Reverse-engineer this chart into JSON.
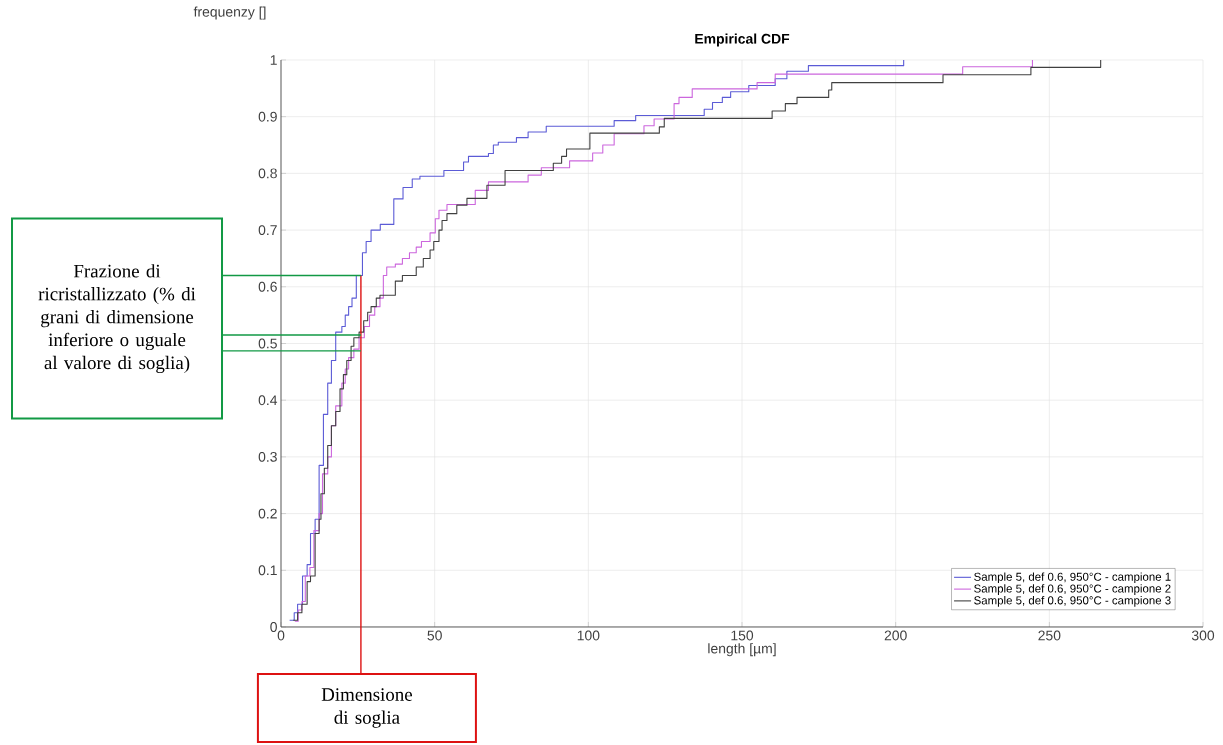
{
  "chart_data": {
    "type": "step",
    "title": "Empirical CDF",
    "xlabel": "length [µm]",
    "ylabel": "frequenzy []",
    "xlim": [
      0,
      300
    ],
    "ylim": [
      0,
      1
    ],
    "xticks": [
      0,
      50,
      100,
      150,
      200,
      250,
      300
    ],
    "yticks": [
      0,
      0.1,
      0.2,
      0.3,
      0.4,
      0.5,
      0.6,
      0.7,
      0.8,
      0.9,
      1
    ],
    "grid": true,
    "legend": "bottom right",
    "series": [
      {
        "name": "Sample 5, def 0.6, 950°C - campione 1",
        "color": "#5b5bd6",
        "x": [
          2.8,
          4.3,
          5.4,
          7.0,
          8.5,
          9.6,
          11.1,
          12.4,
          13.8,
          15.2,
          16.4,
          17.8,
          19.8,
          20.9,
          22.0,
          23.1,
          24.5,
          26.5,
          27.7,
          29.3,
          32.3,
          36.7,
          39.7,
          42.7,
          45.2,
          53,
          59.4,
          61,
          67.5,
          69.1,
          70.7,
          76.6,
          80.4,
          86.3,
          108.4,
          115.4,
          137.7,
          140.4,
          143.6,
          146.3,
          152.2,
          160.8,
          164.6,
          171.6,
          202.6
        ],
        "values": [
          0.012,
          0.025,
          0.04,
          0.09,
          0.11,
          0.165,
          0.19,
          0.285,
          0.375,
          0.43,
          0.47,
          0.52,
          0.53,
          0.55,
          0.565,
          0.58,
          0.62,
          0.66,
          0.68,
          0.7,
          0.71,
          0.755,
          0.775,
          0.79,
          0.795,
          0.805,
          0.82,
          0.83,
          0.835,
          0.85,
          0.855,
          0.863,
          0.873,
          0.883,
          0.893,
          0.902,
          0.913,
          0.925,
          0.934,
          0.944,
          0.955,
          0.967,
          0.98,
          0.99,
          1.0
        ]
      },
      {
        "name": "Sample 5, def 0.6, 950°C - campione 2",
        "color": "#cc66dd",
        "x": [
          4.5,
          5.6,
          6.8,
          7.9,
          9.4,
          10.7,
          12.4,
          13.5,
          15.2,
          16.4,
          17.8,
          19.8,
          20.9,
          22.0,
          23.7,
          25.4,
          27.1,
          28.8,
          30.5,
          32.2,
          33.3,
          34.4,
          37.2,
          39.5,
          41.8,
          44,
          45.7,
          48.5,
          50.2,
          51.4,
          54,
          63.2,
          67.5,
          80.4,
          84.7,
          93.9,
          101.4,
          104.7,
          108.4,
          118.1,
          121.4,
          127.9,
          129.5,
          133.8,
          154.9,
          160.8,
          221.8,
          244.5
        ],
        "values": [
          0.01,
          0.03,
          0.045,
          0.09,
          0.105,
          0.17,
          0.2,
          0.27,
          0.3,
          0.355,
          0.39,
          0.43,
          0.455,
          0.475,
          0.49,
          0.51,
          0.53,
          0.55,
          0.565,
          0.58,
          0.62,
          0.635,
          0.64,
          0.65,
          0.66,
          0.67,
          0.68,
          0.695,
          0.72,
          0.735,
          0.745,
          0.77,
          0.785,
          0.797,
          0.81,
          0.822,
          0.836,
          0.85,
          0.87,
          0.884,
          0.896,
          0.923,
          0.934,
          0.949,
          0.96,
          0.975,
          0.988,
          1.0
        ]
      },
      {
        "name": "Sample 5, def 0.6, 950°C - campione 3",
        "color": "#404040",
        "x": [
          4.0,
          5.4,
          6.8,
          8.5,
          9.6,
          11.1,
          12.4,
          13.0,
          14.1,
          15.2,
          16.4,
          17.8,
          19.2,
          20.3,
          21.4,
          22.8,
          23.7,
          25.4,
          26.9,
          28.2,
          29.3,
          31,
          32.2,
          37.2,
          39.5,
          44,
          46.3,
          48.5,
          49.7,
          51.4,
          52.4,
          54,
          57.2,
          60.5,
          67,
          72.9,
          88.6,
          91.3,
          92.9,
          100.5,
          123.1,
          124.7,
          159.8,
          164.1,
          167.9,
          178.2,
          179.2,
          215.4,
          244,
          266.7
        ],
        "values": [
          0.012,
          0.025,
          0.04,
          0.08,
          0.09,
          0.165,
          0.19,
          0.235,
          0.28,
          0.32,
          0.355,
          0.38,
          0.42,
          0.445,
          0.47,
          0.495,
          0.51,
          0.52,
          0.54,
          0.555,
          0.565,
          0.58,
          0.585,
          0.61,
          0.62,
          0.635,
          0.65,
          0.665,
          0.68,
          0.7,
          0.717,
          0.729,
          0.744,
          0.756,
          0.779,
          0.805,
          0.818,
          0.83,
          0.843,
          0.871,
          0.882,
          0.897,
          0.91,
          0.923,
          0.934,
          0.947,
          0.96,
          0.974,
          0.987,
          1.0
        ]
      }
    ],
    "ref_lines": [
      {
        "axis": "x",
        "value": 26,
        "color": "#dd1111",
        "label": "Dimensione di soglia"
      },
      {
        "axis": "y",
        "value": 0.62,
        "color": "#119944",
        "label": "Frazione di ricristallizzato (% di grani di dimensione inferiore o uguale al valore di soglia)"
      },
      {
        "axis": "y",
        "value": 0.515,
        "color": "#119944"
      },
      {
        "axis": "y",
        "value": 0.487,
        "color": "#119944"
      }
    ]
  }
}
